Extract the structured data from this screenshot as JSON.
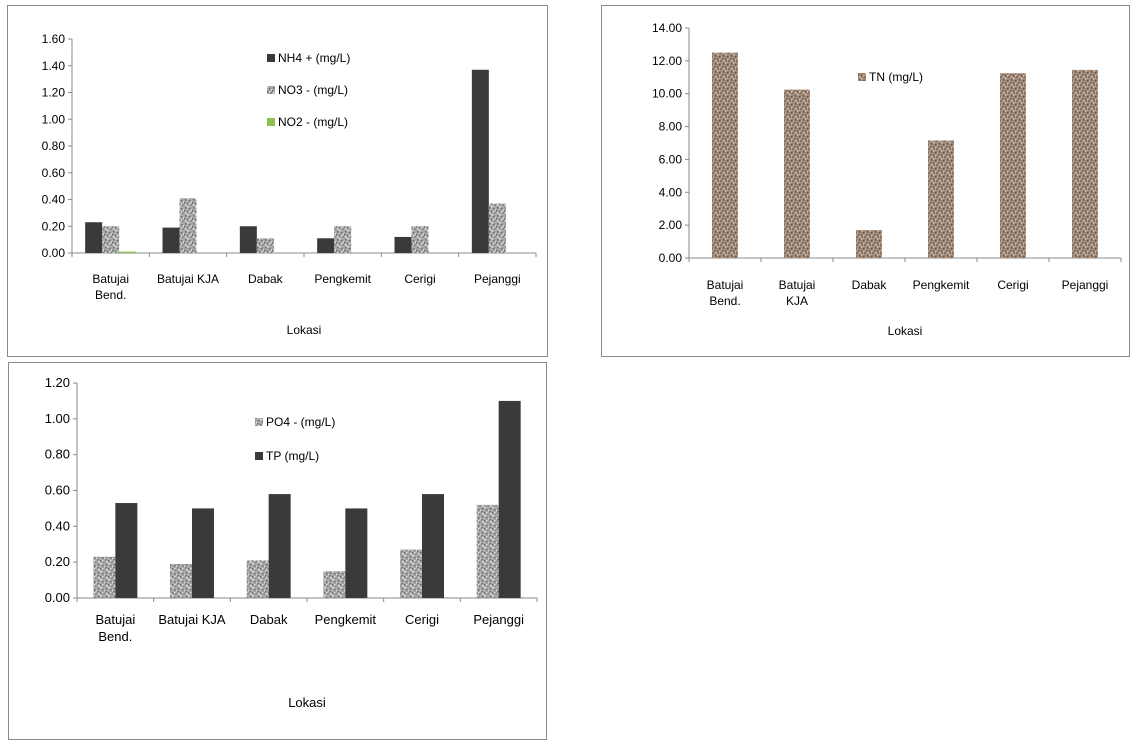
{
  "chart_data": [
    {
      "id": "a",
      "type": "bar",
      "categories": [
        [
          "Batujai",
          "Bend."
        ],
        [
          "Batujai KJA"
        ],
        [
          "Dabak"
        ],
        [
          "Pengkemit"
        ],
        [
          "Cerigi"
        ],
        [
          "Pejanggi"
        ]
      ],
      "ylim": [
        0,
        1.6
      ],
      "yticks": [
        "0.00",
        "0.20",
        "0.40",
        "0.60",
        "0.80",
        "1.00",
        "1.20",
        "1.40",
        "1.60"
      ],
      "xlabel": "Lokasi",
      "legend": "inside-top-center",
      "series": [
        {
          "name": "NH4 + (mg/L)",
          "color": "#3a3a3a",
          "pattern": "solid",
          "values": [
            0.23,
            0.19,
            0.2,
            0.11,
            0.12,
            1.37
          ]
        },
        {
          "name": "NO3 - (mg/L)",
          "color": "#a9a9a9",
          "pattern": "speckle-gray",
          "values": [
            0.2,
            0.41,
            0.11,
            0.2,
            0.2,
            0.37
          ]
        },
        {
          "name": "NO2 -  (mg/L)",
          "color": "#8fbf4f",
          "pattern": "solid",
          "values": [
            0.01,
            0.0,
            0.0,
            0.0,
            0.0,
            0.0
          ]
        }
      ]
    },
    {
      "id": "b",
      "type": "bar",
      "categories": [
        [
          "Batujai",
          "Bend."
        ],
        [
          "Batujai",
          "KJA"
        ],
        [
          "Dabak"
        ],
        [
          "Pengkemit"
        ],
        [
          "Cerigi"
        ],
        [
          "Pejanggi"
        ]
      ],
      "ylim": [
        0,
        14
      ],
      "yticks": [
        "0.00",
        "2.00",
        "4.00",
        "6.00",
        "8.00",
        "10.00",
        "12.00",
        "14.00"
      ],
      "xlabel": "Lokasi",
      "legend": "inside-top-center",
      "series": [
        {
          "name": "TN (mg/L)",
          "color": "#a08878",
          "pattern": "speckle-brown",
          "values": [
            12.5,
            10.25,
            1.7,
            7.15,
            11.25,
            11.45
          ]
        }
      ]
    },
    {
      "id": "c",
      "type": "bar",
      "categories": [
        [
          "Batujai",
          "Bend."
        ],
        [
          "Batujai KJA"
        ],
        [
          "Dabak"
        ],
        [
          "Pengkemit"
        ],
        [
          "Cerigi"
        ],
        [
          "Pejanggi"
        ]
      ],
      "ylim": [
        0,
        1.2
      ],
      "yticks": [
        "0.00",
        "0.20",
        "0.40",
        "0.60",
        "0.80",
        "1.00",
        "1.20"
      ],
      "xlabel": "Lokasi",
      "legend": "inside-top-center",
      "series": [
        {
          "name": "PO4  - (mg/L)",
          "color": "#a9a9a9",
          "pattern": "speckle-gray",
          "values": [
            0.23,
            0.19,
            0.21,
            0.15,
            0.27,
            0.52
          ]
        },
        {
          "name": "TP (mg/L)",
          "color": "#3a3a3a",
          "pattern": "solid",
          "values": [
            0.53,
            0.5,
            0.58,
            0.5,
            0.58,
            1.1
          ]
        }
      ]
    }
  ]
}
